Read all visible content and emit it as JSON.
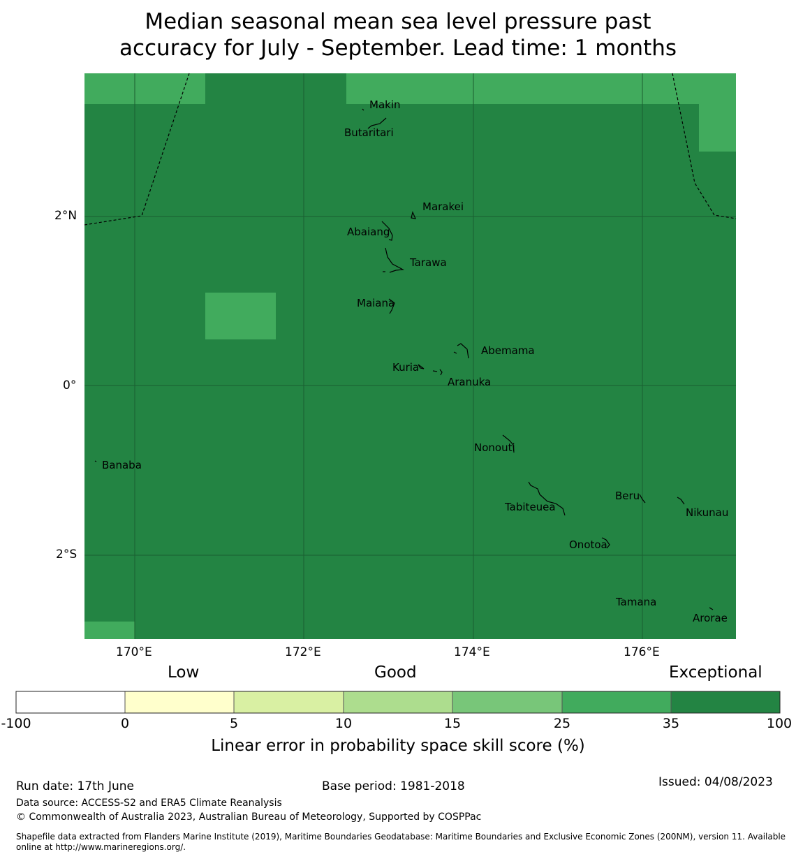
{
  "title": {
    "line1": "Median seasonal mean sea level pressure past",
    "line2": "accuracy for July - September. Lead time: 1 months"
  },
  "map": {
    "lon_labels": [
      "170°E",
      "172°E",
      "174°E",
      "176°E"
    ],
    "lat_labels": [
      "2°N",
      "0°",
      "2°S"
    ],
    "islands": [
      {
        "name": "Makin"
      },
      {
        "name": "Butaritari"
      },
      {
        "name": "Marakei"
      },
      {
        "name": "Abaiang"
      },
      {
        "name": "Tarawa"
      },
      {
        "name": "Maiana"
      },
      {
        "name": "Abemama"
      },
      {
        "name": "Kuria"
      },
      {
        "name": "Aranuka"
      },
      {
        "name": "Nonouti"
      },
      {
        "name": "Banaba"
      },
      {
        "name": "Beru"
      },
      {
        "name": "Tabiteuea"
      },
      {
        "name": "Nikunau"
      },
      {
        "name": "Onotoa"
      },
      {
        "name": "Tamana"
      },
      {
        "name": "Arorae"
      }
    ],
    "colors": {
      "exceptional": "#238443",
      "cat_25_35": "#41ab5d"
    }
  },
  "legend": {
    "categories": [
      "Low",
      "Good",
      "Exceptional"
    ],
    "ticks": [
      "-100",
      "0",
      "5",
      "10",
      "15",
      "25",
      "35",
      "100"
    ],
    "colors": [
      "#ffffff",
      "#ffffcc",
      "#d9f0a3",
      "#addd8e",
      "#78c679",
      "#41ab5d",
      "#238443"
    ],
    "title": "Linear error in probability space skill score (%)"
  },
  "footer": {
    "run_date": "Run date: 17th June",
    "base_period": "Base period: 1981-2018",
    "issued": "Issued: 04/08/2023",
    "data_source": "Data source: ACCESS-S2 and ERA5 Climate Reanalysis",
    "copyright": "© Commonwealth of Australia 2023, Australian Bureau of Meteorology, Supported by COSPPac",
    "shapefile": "Shapefile data extracted from Flanders Marine Institute (2019), Maritime Boundaries Geodatabase: Maritime Boundaries and Exclusive Economic Zones (200NM), version 11. Available online at http://www.marineregions.org/."
  }
}
